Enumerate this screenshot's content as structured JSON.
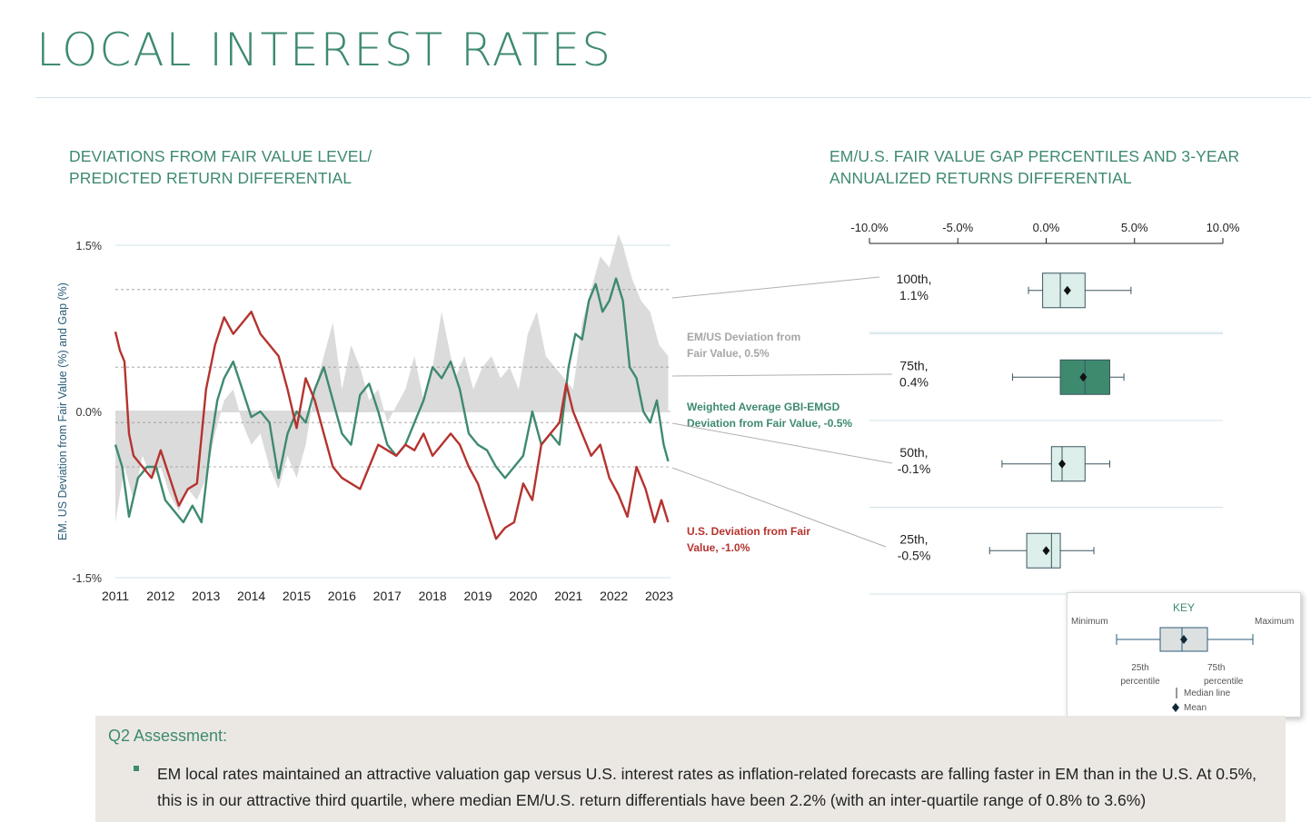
{
  "page": {
    "title": "LOCAL INTEREST RATES"
  },
  "left_chart": {
    "title_lines": [
      "DEVIATIONS FROM FAIR VALUE LEVEL/",
      "PREDICTED RETURN DIFFERENTIAL"
    ]
  },
  "right_chart": {
    "title_lines": [
      "EM/U.S. FAIR VALUE GAP PERCENTILES AND 3-YEAR",
      "ANNUALIZED RETURNS DIFFERENTIAL"
    ]
  },
  "key": {
    "title": "KEY",
    "minimum": "Minimum",
    "maximum": "Maximum",
    "p25": [
      "25th",
      "percentile"
    ],
    "p75": [
      "75th",
      "percentile"
    ],
    "median": "Median line",
    "mean": "Mean"
  },
  "assessment": {
    "title": "Q2 Assessment:",
    "text": "EM local rates maintained an attractive valuation gap versus U.S. interest rates as inflation-related forecasts are falling faster in EM than in the U.S. At 0.5%, this is in our attractive third quartile, where median EM/U.S. return differentials have been 2.2% (with an inter-quartile range of 0.8% to 3.6%)"
  },
  "colors": {
    "green": "#3e8a6e",
    "red": "#b5332e",
    "gap_fill": "#d9d9d9",
    "title": "#3e8a6e",
    "blue": "#2a5d78"
  },
  "chart_data": [
    {
      "type": "line",
      "ylabel": "EM. US Deviation from Fair Value (%) and Gap (%)",
      "ylim": [
        -1.5,
        1.5
      ],
      "yticks": [
        "1.5%",
        "0.0%",
        "-1.5%"
      ],
      "xlim": [
        2011,
        2023.25
      ],
      "xticks": [
        "2011",
        "2012",
        "2013",
        "2014",
        "2015",
        "2016",
        "2017",
        "2018",
        "2019",
        "2020",
        "2021",
        "2022",
        "2023"
      ],
      "reference_lines": [
        1.1,
        0.4,
        -0.1,
        -0.5
      ],
      "series": [
        {
          "name": "EM/US Deviation from Fair Value",
          "label": "EM/US Deviation from Fair Value, 0.5%",
          "style": "area",
          "x": [
            2011.0,
            2011.2,
            2011.4,
            2011.6,
            2011.8,
            2012.0,
            2012.2,
            2012.4,
            2012.6,
            2012.8,
            2013.0,
            2013.2,
            2013.4,
            2013.6,
            2013.8,
            2014.0,
            2014.2,
            2014.4,
            2014.6,
            2014.8,
            2015.0,
            2015.2,
            2015.4,
            2015.6,
            2015.8,
            2016.0,
            2016.2,
            2016.4,
            2016.6,
            2016.8,
            2017.0,
            2017.2,
            2017.4,
            2017.6,
            2017.8,
            2018.0,
            2018.2,
            2018.3,
            2018.5,
            2018.7,
            2018.9,
            2019.1,
            2019.3,
            2019.5,
            2019.7,
            2019.9,
            2020.1,
            2020.3,
            2020.5,
            2020.7,
            2020.9,
            2021.1,
            2021.3,
            2021.5,
            2021.7,
            2021.9,
            2022.1,
            2022.2,
            2022.4,
            2022.6,
            2022.8,
            2023.0,
            2023.2
          ],
          "values": [
            -1.0,
            -0.5,
            -0.8,
            -0.4,
            -0.6,
            -0.5,
            -0.75,
            -0.9,
            -0.7,
            -0.8,
            -0.6,
            -0.2,
            0.1,
            0.2,
            -0.1,
            -0.3,
            -0.2,
            -0.5,
            -0.7,
            -0.4,
            -0.6,
            -0.3,
            0.2,
            0.5,
            0.8,
            0.2,
            0.6,
            0.4,
            0.1,
            0.2,
            -0.1,
            0.05,
            0.2,
            0.5,
            0.1,
            0.4,
            0.9,
            0.7,
            0.3,
            0.5,
            0.2,
            0.4,
            0.5,
            0.3,
            0.4,
            0.2,
            0.7,
            0.9,
            0.5,
            0.4,
            0.3,
            0.2,
            0.8,
            1.1,
            1.4,
            1.3,
            1.6,
            1.5,
            1.2,
            1.0,
            0.9,
            0.6,
            0.5
          ]
        },
        {
          "name": "Weighted Average GBI-EMGD Deviation from Fair Value",
          "label": "Weighted Average GBI-EMGD Deviation from Fair Value, -0.5%",
          "x": [
            2011.0,
            2011.15,
            2011.3,
            2011.5,
            2011.7,
            2011.9,
            2012.1,
            2012.3,
            2012.5,
            2012.7,
            2012.9,
            2013.1,
            2013.25,
            2013.4,
            2013.6,
            2013.8,
            2014.0,
            2014.2,
            2014.4,
            2014.6,
            2014.8,
            2015.0,
            2015.2,
            2015.4,
            2015.6,
            2015.8,
            2016.0,
            2016.2,
            2016.4,
            2016.6,
            2016.8,
            2017.0,
            2017.2,
            2017.4,
            2017.6,
            2017.8,
            2018.0,
            2018.2,
            2018.4,
            2018.6,
            2018.8,
            2019.0,
            2019.2,
            2019.4,
            2019.6,
            2019.8,
            2020.0,
            2020.2,
            2020.4,
            2020.6,
            2020.8,
            2021.0,
            2021.15,
            2021.3,
            2021.45,
            2021.6,
            2021.75,
            2021.9,
            2022.05,
            2022.2,
            2022.35,
            2022.5,
            2022.65,
            2022.8,
            2022.95,
            2023.1,
            2023.2
          ],
          "values": [
            -0.3,
            -0.5,
            -0.95,
            -0.6,
            -0.5,
            -0.5,
            -0.8,
            -0.9,
            -1.0,
            -0.85,
            -1.0,
            -0.3,
            0.1,
            0.3,
            0.45,
            0.2,
            -0.05,
            0.0,
            -0.1,
            -0.6,
            -0.2,
            0.0,
            -0.1,
            0.2,
            0.4,
            0.1,
            -0.2,
            -0.3,
            0.15,
            0.25,
            0.0,
            -0.3,
            -0.4,
            -0.3,
            -0.1,
            0.1,
            0.4,
            0.3,
            0.45,
            0.2,
            -0.2,
            -0.3,
            -0.35,
            -0.5,
            -0.6,
            -0.5,
            -0.4,
            0.0,
            -0.3,
            -0.2,
            -0.3,
            0.4,
            0.7,
            0.65,
            1.0,
            1.15,
            0.9,
            1.0,
            1.2,
            1.0,
            0.4,
            0.3,
            0.0,
            -0.1,
            0.1,
            -0.3,
            -0.45
          ]
        },
        {
          "name": "U.S. Deviation from Fair Value",
          "label": "U.S. Deviation from Fair Value, -1.0%",
          "x": [
            2011.0,
            2011.1,
            2011.2,
            2011.3,
            2011.4,
            2011.6,
            2011.8,
            2012.0,
            2012.2,
            2012.4,
            2012.6,
            2012.8,
            2013.0,
            2013.2,
            2013.4,
            2013.6,
            2013.8,
            2014.0,
            2014.2,
            2014.4,
            2014.6,
            2014.8,
            2015.0,
            2015.2,
            2015.4,
            2015.6,
            2015.8,
            2016.0,
            2016.2,
            2016.4,
            2016.6,
            2016.8,
            2017.0,
            2017.2,
            2017.4,
            2017.6,
            2017.8,
            2018.0,
            2018.2,
            2018.4,
            2018.6,
            2018.8,
            2019.0,
            2019.2,
            2019.4,
            2019.6,
            2019.8,
            2020.0,
            2020.2,
            2020.4,
            2020.6,
            2020.8,
            2020.95,
            2021.1,
            2021.3,
            2021.5,
            2021.7,
            2021.9,
            2022.1,
            2022.3,
            2022.5,
            2022.7,
            2022.9,
            2023.05,
            2023.2
          ],
          "values": [
            0.72,
            0.55,
            0.45,
            -0.2,
            -0.4,
            -0.5,
            -0.6,
            -0.35,
            -0.6,
            -0.85,
            -0.7,
            -0.65,
            0.2,
            0.6,
            0.85,
            0.7,
            0.8,
            0.9,
            0.7,
            0.6,
            0.5,
            0.2,
            -0.15,
            0.3,
            0.1,
            -0.2,
            -0.5,
            -0.6,
            -0.65,
            -0.7,
            -0.5,
            -0.3,
            -0.35,
            -0.4,
            -0.3,
            -0.35,
            -0.2,
            -0.4,
            -0.3,
            -0.2,
            -0.3,
            -0.5,
            -0.65,
            -0.9,
            -1.15,
            -1.05,
            -1.0,
            -0.65,
            -0.8,
            -0.3,
            -0.2,
            -0.1,
            0.25,
            0.0,
            -0.2,
            -0.4,
            -0.3,
            -0.6,
            -0.75,
            -0.95,
            -0.5,
            -0.7,
            -1.0,
            -0.8,
            -1.0
          ]
        }
      ]
    },
    {
      "type": "box",
      "xlim": [
        -10.0,
        10.0
      ],
      "xticks": [
        "-10.0%",
        "-5.0%",
        "0.0%",
        "5.0%",
        "10.0%"
      ],
      "categories": [
        "100th, 1.1%",
        "75th, 0.4%",
        "50th, -0.1%",
        "25th, -0.5%"
      ],
      "category_lines": [
        [
          "100th,",
          "1.1%"
        ],
        [
          "75th,",
          "0.4%"
        ],
        [
          "50th,",
          "-0.1%"
        ],
        [
          "25th,",
          "-0.5%"
        ]
      ],
      "highlight": "75th, 0.4%",
      "boxes": [
        {
          "min": -1.0,
          "q1": -0.2,
          "median": 0.8,
          "q3": 2.2,
          "max": 4.8,
          "mean": 1.2
        },
        {
          "min": -1.9,
          "q1": 0.8,
          "median": 2.2,
          "q3": 3.6,
          "max": 4.4,
          "mean": 2.1
        },
        {
          "min": -2.5,
          "q1": 0.3,
          "median": 0.9,
          "q3": 2.2,
          "max": 3.6,
          "mean": 0.9
        },
        {
          "min": -3.2,
          "q1": -1.1,
          "median": 0.3,
          "q3": 0.8,
          "max": 2.7,
          "mean": 0.0
        }
      ]
    }
  ]
}
